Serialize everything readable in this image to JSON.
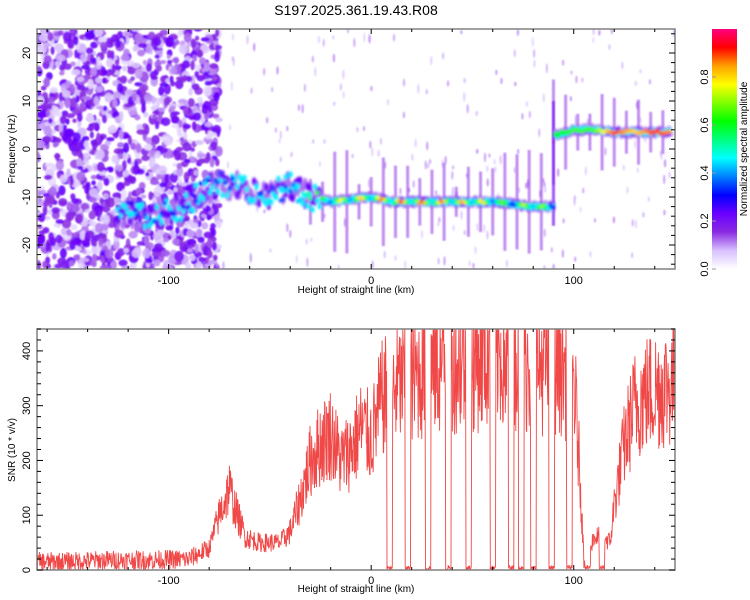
{
  "title": "S197.2025.361.19.43.R08",
  "chart_data": [
    {
      "type": "heatmap",
      "name": "spectrogram",
      "xlabel": "Height of straight line (km)",
      "ylabel": "Frequency (Hz)",
      "xlim": [
        -165,
        150
      ],
      "ylim": [
        -25,
        25
      ],
      "xticks": [
        -100,
        0,
        100
      ],
      "yticks": [
        -20,
        -10,
        0,
        10,
        20
      ],
      "colorbar": {
        "label": "Normalized spectral amplitude",
        "range": [
          0,
          1
        ],
        "ticks": [
          "0.0",
          "0.2",
          "0.4",
          "0.6",
          "0.8"
        ],
        "colors": [
          "#ffffff",
          "#d8c0ff",
          "#8a2be2",
          "#6a00ff",
          "#0000ff",
          "#0080ff",
          "#00ffff",
          "#00ff80",
          "#00ff00",
          "#80ff00",
          "#ffff00",
          "#ffa000",
          "#ff0000",
          "#ff0080"
        ]
      },
      "signal_track": [
        {
          "x": -125,
          "freq": -13.5,
          "amp": 0.25
        },
        {
          "x": -110,
          "freq": -14,
          "amp": 0.35
        },
        {
          "x": -95,
          "freq": -12.5,
          "amp": 0.3
        },
        {
          "x": -85,
          "freq": -9.5,
          "amp": 0.3
        },
        {
          "x": -75,
          "freq": -7,
          "amp": 0.35
        },
        {
          "x": -65,
          "freq": -8,
          "amp": 0.3
        },
        {
          "x": -50,
          "freq": -9.5,
          "amp": 0.35
        },
        {
          "x": -40,
          "freq": -7.5,
          "amp": 0.35
        },
        {
          "x": -30,
          "freq": -10,
          "amp": 0.55
        },
        {
          "x": -20,
          "freq": -11,
          "amp": 0.75
        },
        {
          "x": -10,
          "freq": -10.5,
          "amp": 0.8
        },
        {
          "x": 0,
          "freq": -10,
          "amp": 0.85
        },
        {
          "x": 10,
          "freq": -11,
          "amp": 0.9
        },
        {
          "x": 20,
          "freq": -11,
          "amp": 0.9
        },
        {
          "x": 30,
          "freq": -11,
          "amp": 0.9
        },
        {
          "x": 40,
          "freq": -11,
          "amp": 0.85
        },
        {
          "x": 50,
          "freq": -11,
          "amp": 0.85
        },
        {
          "x": 60,
          "freq": -11,
          "amp": 0.75
        },
        {
          "x": 70,
          "freq": -11.5,
          "amp": 0.6
        },
        {
          "x": 80,
          "freq": -12,
          "amp": 0.85
        },
        {
          "x": 88,
          "freq": -12,
          "amp": 0.6
        },
        {
          "x": 92,
          "freq": 3,
          "amp": 0.6
        },
        {
          "x": 100,
          "freq": 4,
          "amp": 0.65
        },
        {
          "x": 110,
          "freq": 4,
          "amp": 0.65
        },
        {
          "x": 120,
          "freq": 3.5,
          "amp": 0.9
        },
        {
          "x": 130,
          "freq": 3.5,
          "amp": 0.8
        },
        {
          "x": 140,
          "freq": 3.5,
          "amp": 0.9
        },
        {
          "x": 148,
          "freq": 3.5,
          "amp": 0.85
        }
      ]
    },
    {
      "type": "line",
      "name": "snr",
      "xlabel": "Height of straight line (km)",
      "ylabel": "SNR (10 * v/v)",
      "xlim": [
        -165,
        150
      ],
      "ylim": [
        0,
        440
      ],
      "xticks": [
        -100,
        0,
        100
      ],
      "yticks": [
        0,
        100,
        200,
        300,
        400
      ],
      "color": "#ee3333",
      "series": [
        {
          "name": "SNR",
          "x": [
            -165,
            -150,
            -130,
            -110,
            -90,
            -80,
            -75,
            -70,
            -67,
            -62,
            -55,
            -45,
            -40,
            -35,
            -30,
            -25,
            -20,
            -15,
            -10,
            -5,
            0,
            5,
            10,
            20,
            30,
            40,
            50,
            60,
            70,
            80,
            90,
            100,
            103,
            105,
            110,
            115,
            118,
            120,
            125,
            130,
            135,
            140,
            150
          ],
          "y": [
            15,
            15,
            18,
            18,
            20,
            40,
            100,
            150,
            110,
            60,
            50,
            50,
            70,
            130,
            200,
            230,
            250,
            200,
            220,
            260,
            240,
            310,
            330,
            350,
            370,
            380,
            380,
            390,
            390,
            370,
            380,
            350,
            180,
            20,
            60,
            60,
            50,
            120,
            230,
            300,
            320,
            330,
            340
          ]
        },
        {
          "name": "dropouts_x",
          "x": [
            9,
            18,
            28,
            38,
            48,
            60,
            69,
            74,
            80,
            89,
            98,
            107,
            114
          ]
        }
      ]
    }
  ]
}
